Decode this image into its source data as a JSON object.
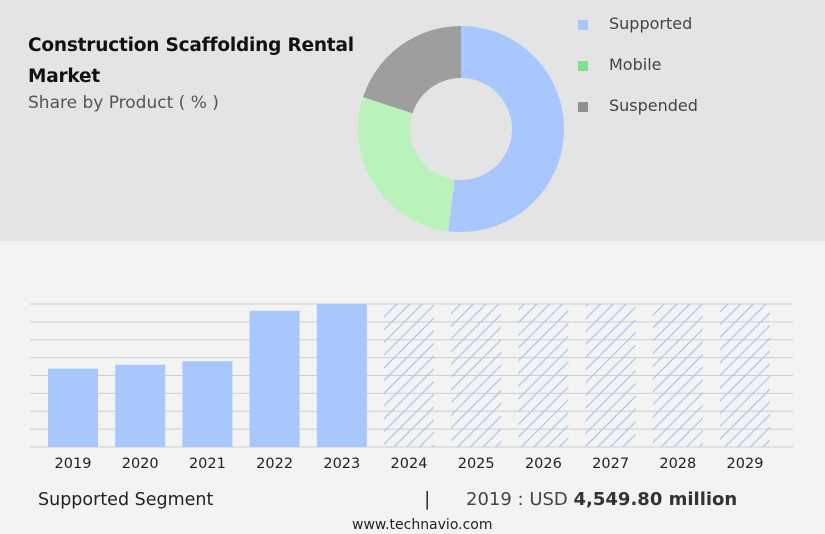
{
  "header": {
    "title": "Construction Scaffolding Rental Market",
    "subtitle": "Share by Product ( % )"
  },
  "chart_data": [
    {
      "type": "pie",
      "subtype": "donut",
      "title": "Share by Product ( % )",
      "categories": [
        "Supported",
        "Mobile",
        "Suspended"
      ],
      "values": [
        52,
        28,
        20
      ],
      "colors": [
        "#a8c8fd",
        "#b9f2bb",
        "#9e9e9e"
      ],
      "legend": {
        "placement": "right",
        "swatch_colors": [
          "#a8c8fd",
          "#7fe28b",
          "#909090"
        ]
      }
    },
    {
      "type": "bar",
      "title": "Supported Segment",
      "categories": [
        "2019",
        "2020",
        "2021",
        "2022",
        "2023",
        "2024",
        "2025",
        "2026",
        "2027",
        "2028",
        "2029"
      ],
      "values": [
        4549.8,
        4781,
        4977,
        7910,
        8300,
        8300,
        8300,
        8300,
        8300,
        8300,
        8300
      ],
      "forecast_from": "2024",
      "forecast_style": "hatched",
      "ylim": [
        0,
        8300
      ],
      "grid": true,
      "colors": {
        "actual": "#a8c8fd",
        "forecast_hatch": "#a9c4ee"
      }
    }
  ],
  "footer": {
    "segment_label": "Supported Segment",
    "separator": "|",
    "value_prefix": "2019 : USD",
    "value_bold": "4,549.80 million",
    "url": "www.technavio.com"
  }
}
